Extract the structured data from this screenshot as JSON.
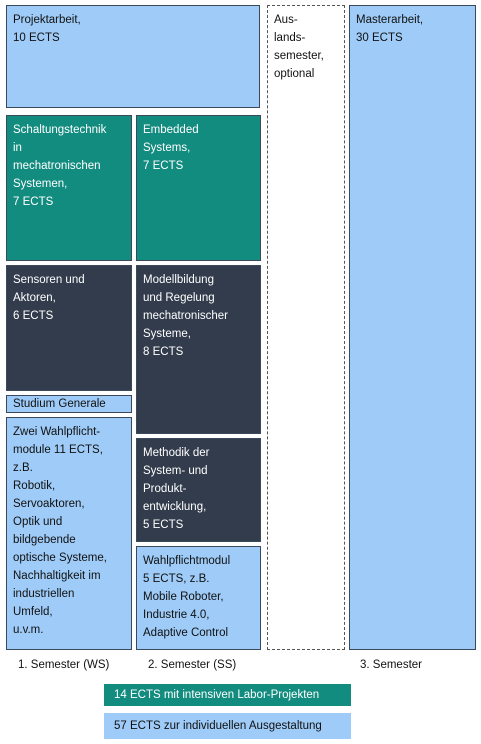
{
  "boxes": [
    {
      "lines": [
        "Projektarbeit,",
        "10 ECTS"
      ]
    },
    {
      "lines": [
        "Aus-",
        "lands-",
        "semester,",
        "optional"
      ]
    },
    {
      "lines": [
        "Masterarbeit,",
        "30 ECTS"
      ]
    },
    {
      "lines": [
        "Schaltungstechnik",
        "in",
        "mechatronischen",
        "Systemen,",
        "7 ECTS"
      ]
    },
    {
      "lines": [
        "Embedded",
        "Systems,",
        "7 ECTS"
      ]
    },
    {
      "lines": [
        "Sensoren und",
        "Aktoren,",
        "6 ECTS"
      ]
    },
    {
      "lines": [
        "Modellbildung",
        "und Regelung",
        "mechatronischer",
        "Systeme,",
        "8 ECTS"
      ]
    },
    {
      "lines": [
        "Studium Generale"
      ]
    },
    {
      "lines": [
        "Zwei Wahlpflicht-",
        "module 11 ECTS,",
        "z.B.",
        "Robotik,",
        "Servoaktoren,",
        "Optik und",
        "bildgebende",
        "optische Systeme,",
        "Nachhaltigkeit im",
        "industriellen",
        "Umfeld,",
        "u.v.m."
      ]
    },
    {
      "lines": [
        "Methodik der",
        "System- und",
        "Produkt-",
        "entwicklung,",
        "5 ECTS"
      ]
    },
    {
      "lines": [
        "Wahlpflichtmodul",
        "5 ECTS, z.B.",
        "Mobile Roboter,",
        "Industrie 4.0,",
        "Adaptive Control"
      ]
    }
  ],
  "semesters": [
    "1. Semester (WS)",
    "2. Semester (SS)",
    "3. Semester"
  ],
  "legend": [
    "14 ECTS mit intensiven Labor-Projekten",
    "57 ECTS zur individuellen Ausgestaltung"
  ]
}
